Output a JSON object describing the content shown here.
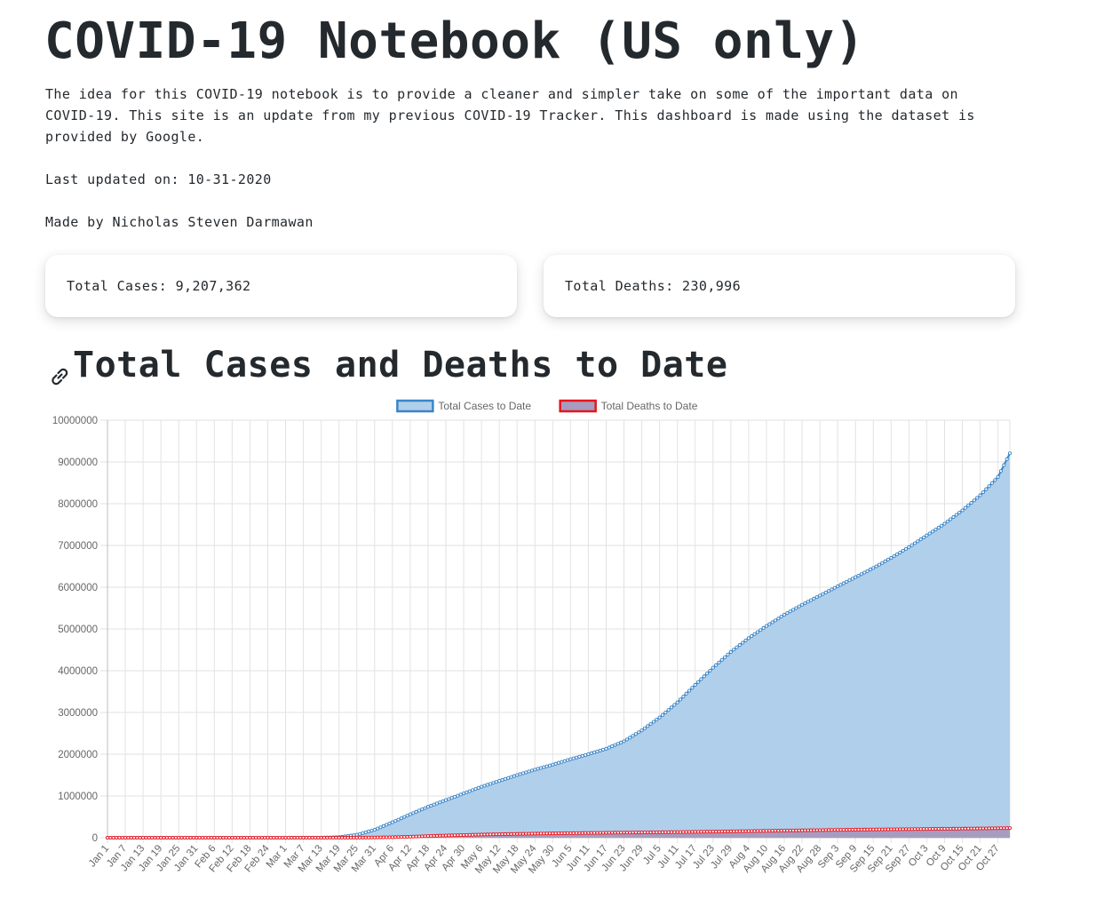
{
  "page": {
    "title": "COVID-19 Notebook (US only)",
    "intro": "The idea for this COVID-19 notebook is to provide a cleaner and simpler take on some of the important data on COVID-19. This site is an update from my previous COVID-19 Tracker. This dashboard is made using the dataset is provided by Google.",
    "last_updated": "Last updated on: 10-31-2020",
    "author": "Made by Nicholas Steven Darmawan"
  },
  "cards": {
    "total_cases": "Total Cases: 9,207,362",
    "total_deaths": "Total Deaths: 230,996"
  },
  "section": {
    "heading": "Total Cases and Deaths to Date",
    "icon": "link-icon"
  },
  "colors": {
    "cases_line": "#3b86c8",
    "cases_fill": "#b0cfeb",
    "deaths_line": "#e8141c",
    "deaths_fill": "#a79cc0"
  },
  "chart_data": {
    "type": "area",
    "legend_position": "top",
    "grid": true,
    "ylim": [
      0,
      10000000
    ],
    "yticks": [
      0,
      1000000,
      2000000,
      3000000,
      4000000,
      5000000,
      6000000,
      7000000,
      8000000,
      9000000,
      10000000
    ],
    "x_range": [
      "2020-01-01",
      "2020-10-31"
    ],
    "xtick_labels": [
      "Jan 1",
      "Jan 7",
      "Jan 13",
      "Jan 19",
      "Jan 25",
      "Jan 31",
      "Feb 6",
      "Feb 12",
      "Feb 18",
      "Feb 24",
      "Mar 1",
      "Mar 7",
      "Mar 13",
      "Mar 19",
      "Mar 25",
      "Mar 31",
      "Apr 6",
      "Apr 12",
      "Apr 18",
      "Apr 24",
      "Apr 30",
      "May 6",
      "May 12",
      "May 18",
      "May 24",
      "May 30",
      "Jun 5",
      "Jun 11",
      "Jun 17",
      "Jun 23",
      "Jun 29",
      "Jul 5",
      "Jul 11",
      "Jul 17",
      "Jul 23",
      "Jul 29",
      "Aug 4",
      "Aug 10",
      "Aug 16",
      "Aug 22",
      "Aug 28",
      "Sep 3",
      "Sep 9",
      "Sep 15",
      "Sep 21",
      "Sep 27",
      "Oct 3",
      "Oct 9",
      "Oct 15",
      "Oct 21",
      "Oct 27"
    ],
    "series": [
      {
        "name": "Total Cases to Date",
        "key": "cases",
        "points": [
          [
            "2020-01-01",
            0
          ],
          [
            "2020-03-01",
            80
          ],
          [
            "2020-03-13",
            2200
          ],
          [
            "2020-03-19",
            14000
          ],
          [
            "2020-03-25",
            70000
          ],
          [
            "2020-03-31",
            190000
          ],
          [
            "2020-04-06",
            370000
          ],
          [
            "2020-04-12",
            560000
          ],
          [
            "2020-04-18",
            740000
          ],
          [
            "2020-04-24",
            900000
          ],
          [
            "2020-04-30",
            1060000
          ],
          [
            "2020-05-06",
            1220000
          ],
          [
            "2020-05-12",
            1360000
          ],
          [
            "2020-05-18",
            1500000
          ],
          [
            "2020-05-24",
            1630000
          ],
          [
            "2020-05-30",
            1750000
          ],
          [
            "2020-06-05",
            1880000
          ],
          [
            "2020-06-11",
            2000000
          ],
          [
            "2020-06-17",
            2130000
          ],
          [
            "2020-06-23",
            2310000
          ],
          [
            "2020-06-29",
            2570000
          ],
          [
            "2020-07-05",
            2880000
          ],
          [
            "2020-07-11",
            3240000
          ],
          [
            "2020-07-17",
            3660000
          ],
          [
            "2020-07-23",
            4070000
          ],
          [
            "2020-07-29",
            4450000
          ],
          [
            "2020-08-04",
            4780000
          ],
          [
            "2020-08-10",
            5070000
          ],
          [
            "2020-08-16",
            5340000
          ],
          [
            "2020-08-22",
            5580000
          ],
          [
            "2020-08-28",
            5800000
          ],
          [
            "2020-09-03",
            6020000
          ],
          [
            "2020-09-09",
            6240000
          ],
          [
            "2020-09-15",
            6460000
          ],
          [
            "2020-09-21",
            6700000
          ],
          [
            "2020-09-27",
            6960000
          ],
          [
            "2020-10-03",
            7240000
          ],
          [
            "2020-10-09",
            7520000
          ],
          [
            "2020-10-15",
            7840000
          ],
          [
            "2020-10-21",
            8200000
          ],
          [
            "2020-10-27",
            8640000
          ],
          [
            "2020-10-31",
            9207362
          ]
        ]
      },
      {
        "name": "Total Deaths to Date",
        "key": "deaths",
        "points": [
          [
            "2020-01-01",
            0
          ],
          [
            "2020-03-01",
            2
          ],
          [
            "2020-03-13",
            50
          ],
          [
            "2020-03-19",
            250
          ],
          [
            "2020-03-25",
            1100
          ],
          [
            "2020-03-31",
            5000
          ],
          [
            "2020-04-06",
            12000
          ],
          [
            "2020-04-12",
            23000
          ],
          [
            "2020-04-18",
            39000
          ],
          [
            "2020-04-24",
            53000
          ],
          [
            "2020-04-30",
            64000
          ],
          [
            "2020-05-06",
            75000
          ],
          [
            "2020-05-12",
            83000
          ],
          [
            "2020-05-18",
            91000
          ],
          [
            "2020-05-24",
            98000
          ],
          [
            "2020-05-30",
            104000
          ],
          [
            "2020-06-05",
            109000
          ],
          [
            "2020-06-11",
            114000
          ],
          [
            "2020-06-17",
            118000
          ],
          [
            "2020-06-23",
            122000
          ],
          [
            "2020-06-29",
            126000
          ],
          [
            "2020-07-05",
            130000
          ],
          [
            "2020-07-11",
            135000
          ],
          [
            "2020-07-17",
            140000
          ],
          [
            "2020-07-23",
            146000
          ],
          [
            "2020-07-29",
            152000
          ],
          [
            "2020-08-04",
            158000
          ],
          [
            "2020-08-10",
            164000
          ],
          [
            "2020-08-16",
            170000
          ],
          [
            "2020-08-22",
            176000
          ],
          [
            "2020-08-28",
            181000
          ],
          [
            "2020-09-03",
            187000
          ],
          [
            "2020-09-09",
            192000
          ],
          [
            "2020-09-15",
            197000
          ],
          [
            "2020-09-21",
            201000
          ],
          [
            "2020-09-27",
            205000
          ],
          [
            "2020-10-03",
            209000
          ],
          [
            "2020-10-09",
            214000
          ],
          [
            "2020-10-15",
            218000
          ],
          [
            "2020-10-21",
            222000
          ],
          [
            "2020-10-27",
            227000
          ],
          [
            "2020-10-31",
            230996
          ]
        ]
      }
    ]
  }
}
